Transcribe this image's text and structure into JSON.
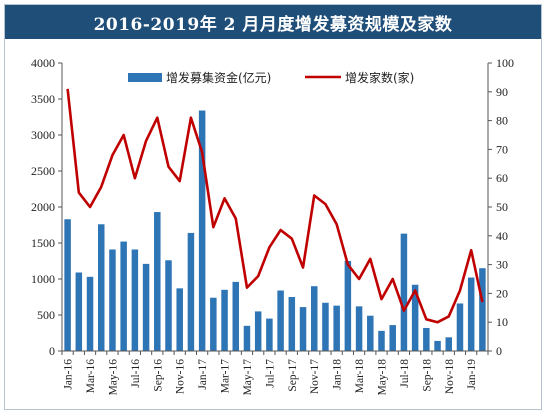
{
  "title": "2016-2019年 2 月月度增发募资规模及家数",
  "colors": {
    "bar": "#2e75b6",
    "line": "#c00000",
    "title_bg": "#1f4e79"
  },
  "chart_data": {
    "type": "bar+line",
    "title": "2016-2019年 2 月月度增发募资规模及家数",
    "x": [
      "Jan-16",
      "Feb-16",
      "Mar-16",
      "Apr-16",
      "May-16",
      "Jun-16",
      "Jul-16",
      "Aug-16",
      "Sep-16",
      "Oct-16",
      "Nov-16",
      "Dec-16",
      "Jan-17",
      "Feb-17",
      "Mar-17",
      "Apr-17",
      "May-17",
      "Jun-17",
      "Jul-17",
      "Aug-17",
      "Sep-17",
      "Oct-17",
      "Nov-17",
      "Dec-17",
      "Jan-18",
      "Feb-18",
      "Mar-18",
      "Apr-18",
      "May-18",
      "Jun-18",
      "Jul-18",
      "Aug-18",
      "Sep-18",
      "Oct-18",
      "Nov-18",
      "Dec-18",
      "Jan-19",
      "Feb-19"
    ],
    "xtick_labels": [
      "Jan-16",
      "Mar-16",
      "May-16",
      "Jul-16",
      "Sep-16",
      "Nov-16",
      "Jan-17",
      "Mar-17",
      "May-17",
      "Jul-17",
      "Sep-17",
      "Nov-17",
      "Jan-18",
      "Mar-18",
      "May-18",
      "Jul-18",
      "Sep-18",
      "Nov-18",
      "Jan-19"
    ],
    "series": [
      {
        "name": "增发募集资金(亿元)",
        "type": "bar",
        "axis": "left",
        "values": [
          1830,
          1090,
          1030,
          1760,
          1410,
          1520,
          1410,
          1210,
          1930,
          1260,
          870,
          1640,
          3340,
          740,
          850,
          960,
          350,
          550,
          450,
          840,
          750,
          610,
          900,
          670,
          630,
          1250,
          620,
          490,
          280,
          360,
          1630,
          920,
          320,
          140,
          190,
          660,
          1020,
          1150
        ]
      },
      {
        "name": "增发家数(家)",
        "type": "line",
        "axis": "right",
        "values": [
          91,
          55,
          50,
          57,
          68,
          75,
          60,
          73,
          81,
          64,
          59,
          81,
          69,
          43,
          53,
          46,
          22,
          26,
          36,
          42,
          39,
          29,
          54,
          51,
          44,
          30,
          25,
          32,
          18,
          25,
          14,
          21,
          11,
          10,
          12,
          21,
          35,
          17
        ]
      }
    ],
    "y_left": {
      "min": 0,
      "max": 4000,
      "step": 500,
      "ticks": [
        "0",
        "500",
        "1000",
        "1500",
        "2000",
        "2500",
        "3000",
        "3500",
        "4000"
      ]
    },
    "y_right": {
      "min": 0,
      "max": 100,
      "step": 10,
      "ticks": [
        "0",
        "10",
        "20",
        "30",
        "40",
        "50",
        "60",
        "70",
        "80",
        "90",
        "100"
      ]
    },
    "legend": {
      "placement": "top",
      "bar_label": "增发募集资金(亿元)",
      "line_label": "增发家数(家)"
    },
    "grid": false
  }
}
